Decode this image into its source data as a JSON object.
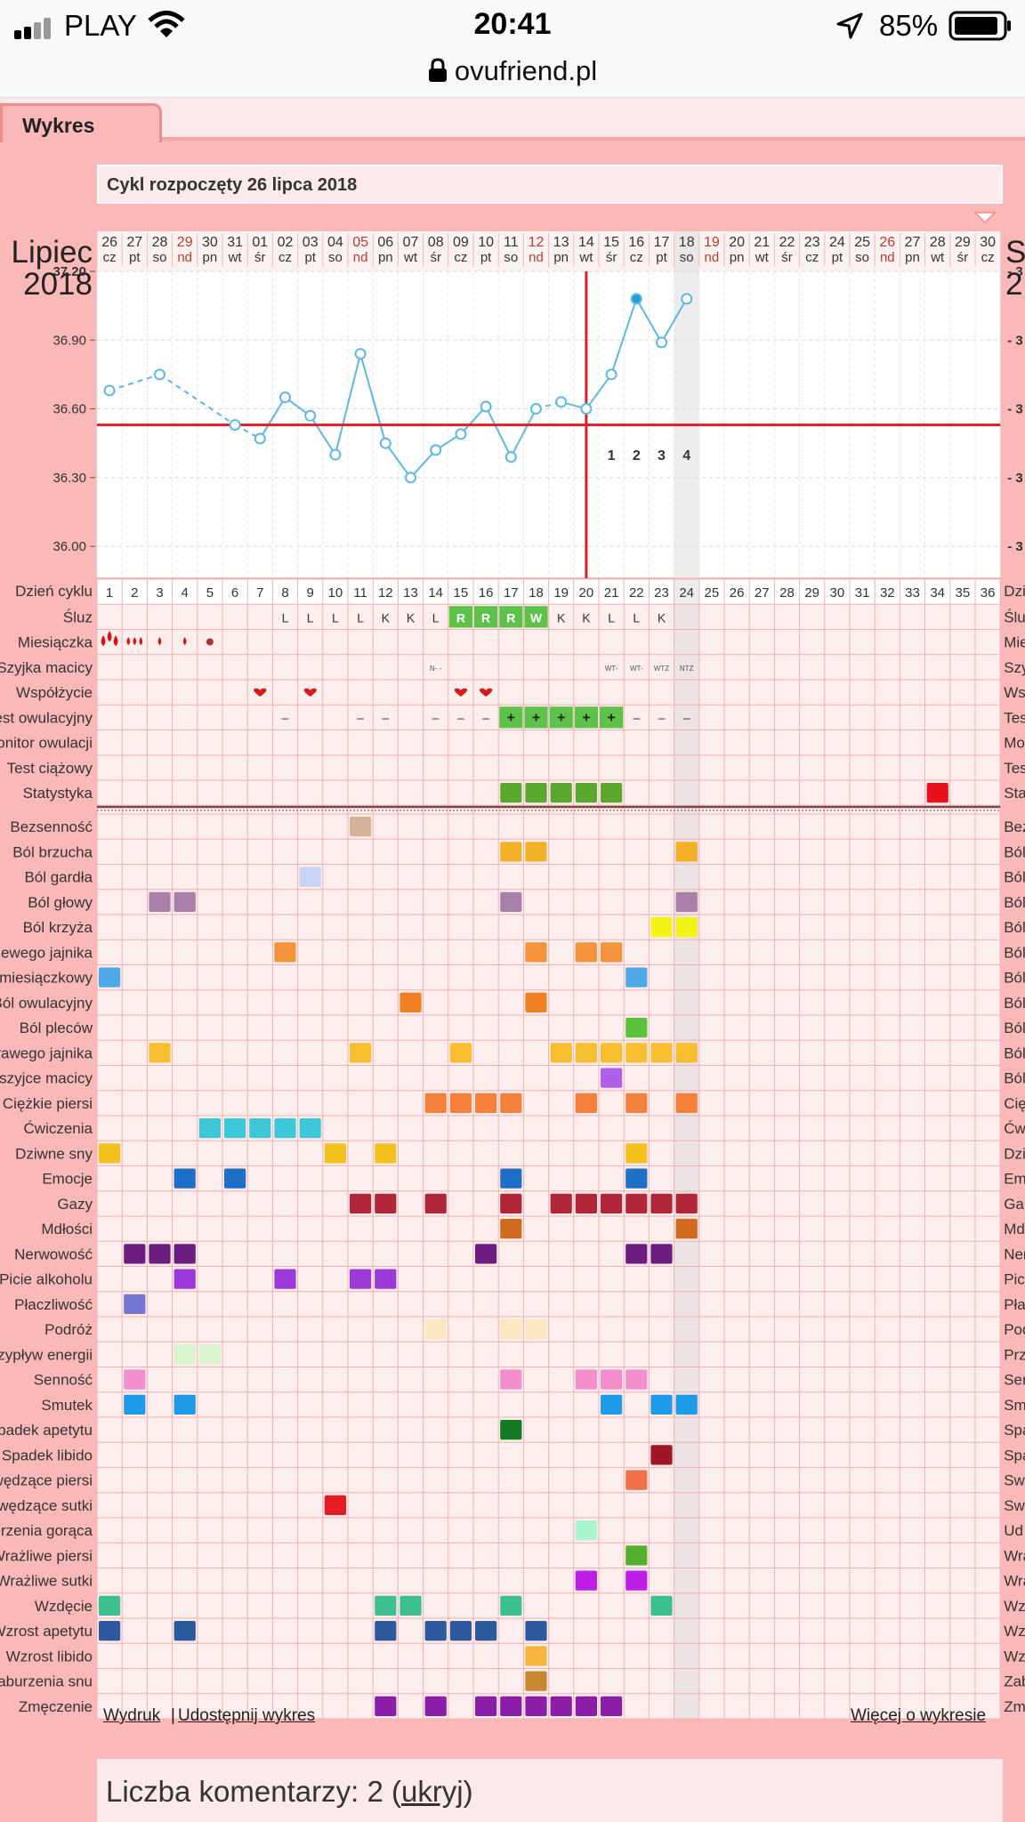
{
  "status_bar": {
    "carrier": "PLAY",
    "time": "20:41",
    "battery": "85%"
  },
  "browser": {
    "url": "ovufriend.pl"
  },
  "tab": {
    "label": "Wykres"
  },
  "cycle_header": "Cykl rozpoczęty 26 lipca 2018",
  "month_left": {
    "month": "Lipiec",
    "year": "2018"
  },
  "month_right": {
    "month": "S",
    "year": "2"
  },
  "dates": [
    "26",
    "27",
    "28",
    "29",
    "30",
    "31",
    "01",
    "02",
    "03",
    "04",
    "05",
    "06",
    "07",
    "08",
    "09",
    "10",
    "11",
    "12",
    "13",
    "14",
    "15",
    "16",
    "17",
    "18",
    "19",
    "20",
    "21",
    "22",
    "23",
    "24",
    "25",
    "26",
    "27",
    "28",
    "29",
    "30"
  ],
  "weekdays": [
    "cz",
    "pt",
    "so",
    "nd",
    "pn",
    "wt",
    "śr",
    "cz",
    "pt",
    "so",
    "nd",
    "pn",
    "wt",
    "śr",
    "cz",
    "pt",
    "so",
    "nd",
    "pn",
    "wt",
    "śr",
    "cz",
    "pt",
    "so",
    "nd",
    "pn",
    "wt",
    "śr",
    "cz",
    "pt",
    "so",
    "nd",
    "pn",
    "wt",
    "śr",
    "cz"
  ],
  "current_day_index": 23,
  "chart_data": {
    "type": "line",
    "title": "",
    "xlabel": "Dzień cyklu",
    "ylabel": "",
    "y_ticks": [
      "37.20",
      "36.90",
      "36.60",
      "36.30",
      "36.00"
    ],
    "ylim": [
      35.95,
      37.2
    ],
    "temperatures": [
      36.68,
      null,
      36.75,
      null,
      null,
      36.53,
      36.47,
      36.65,
      36.57,
      36.4,
      36.84,
      36.45,
      36.3,
      36.42,
      36.49,
      36.61,
      36.39,
      36.6,
      36.63,
      36.6,
      36.75,
      37.08,
      36.89,
      37.08
    ],
    "dashed_gaps": [
      [
        1,
        3
      ],
      [
        3,
        6
      ],
      [
        17,
        18
      ]
    ],
    "filled_point_index": 21,
    "coverline": 36.53,
    "ovulation_day": 20,
    "post_ovulation_labels": [
      "1",
      "2",
      "3",
      "4"
    ],
    "grid": true,
    "colors": {
      "line": "#5bb9e4",
      "coverline": "#dd1f26",
      "ovulation": "#dd1f26"
    }
  },
  "cycle_days": [
    "1",
    "2",
    "3",
    "4",
    "5",
    "6",
    "7",
    "8",
    "9",
    "10",
    "11",
    "12",
    "13",
    "14",
    "15",
    "16",
    "17",
    "18",
    "19",
    "20",
    "21",
    "22",
    "23",
    "24",
    "25",
    "26",
    "27",
    "28",
    "29",
    "30",
    "31",
    "32",
    "33",
    "34",
    "35",
    "36"
  ],
  "rows": {
    "day_row": "Dzień cyklu",
    "obs": [
      "Śluz",
      "Miesiączka",
      "Szyjka macicy",
      "Współżycie",
      "Test owulacyjny",
      "Monitor owulacji",
      "Test ciążowy",
      "Statystyka"
    ],
    "sym": [
      "Bezsenność",
      "Ból brzucha",
      "Ból gardła",
      "Ból głowy",
      "Ból krzyża",
      "Ból lewego jajnika",
      "Ból miesiączkowy",
      "Ból owulacyjny",
      "Ból pleców",
      "Ból prawego jajnika",
      "Ból w szyjce macicy",
      "Ciężkie piersi",
      "Ćwiczenia",
      "Dziwne sny",
      "Emocje",
      "Gazy",
      "Mdłości",
      "Nerwowość",
      "Picie alkoholu",
      "Płaczliwość",
      "Podróż",
      "Przypływ energii",
      "Senność",
      "Smutek",
      "Spadek apetytu",
      "Spadek libido",
      "Swędzące piersi",
      "Swędzące sutki",
      "Uderzenia gorąca",
      "Wrażliwe piersi",
      "Wrażliwe sutki",
      "Wzdęcie",
      "Wzrost apetytu",
      "Wzrost libido",
      "Zaburzenia snu",
      "Zmęczenie"
    ]
  },
  "right_labels": {
    "obs": [
      "Śluz",
      "Mie",
      "Szy",
      "Ws",
      "Tes",
      "Mo",
      "Tes",
      "Sta"
    ],
    "sym": [
      "Bez",
      "Ból",
      "Ból",
      "Ból",
      "Ból",
      "Ból",
      "Ból",
      "Ból",
      "Ból",
      "Ból",
      "Ból",
      "Cię",
      "Ćw",
      "Dzi",
      "Em",
      "Ga",
      "Md",
      "Ner",
      "Pic",
      "Pła",
      "Pod",
      "Prz",
      "Ser",
      "Sm",
      "Spa",
      "Spa",
      "Sw",
      "Sw",
      "Ud",
      "Wra",
      "Wra",
      "Wz",
      "Wz",
      "Wz",
      "Zab",
      "Zm"
    ],
    "day_row": "Dzi"
  },
  "sluz": {
    "8": "L",
    "9": "L",
    "10": "L",
    "11": "L",
    "12": "K",
    "13": "K",
    "14": "L",
    "15": "R",
    "16": "R",
    "17": "R",
    "18": "W",
    "19": "K",
    "20": "K",
    "21": "L",
    "22": "L",
    "23": "K"
  },
  "szyjka": {
    "14": "N- -",
    "21": "WT-",
    "22": "WT-",
    "23": "WTZ",
    "24": "NTZ"
  },
  "bleeding_days": [
    1,
    2,
    3,
    4
  ],
  "spotting_day": 5,
  "sex_days": [
    7,
    9,
    15,
    16
  ],
  "ovu_tests": {
    "8": "–",
    "11": "–",
    "12": "–",
    "14": "–",
    "15": "–",
    "16": "–",
    "17": "+",
    "18": "+",
    "19": "+",
    "20": "+",
    "21": "+",
    "22": "–",
    "23": "–",
    "24": "–"
  },
  "stat_days": [
    17,
    18,
    19,
    20,
    21,
    34
  ],
  "symptoms": {
    "Bezsenność": {
      "color": "#d2b39a",
      "days": [
        11
      ]
    },
    "Ból brzucha": {
      "color": "#f2b126",
      "days": [
        17,
        18,
        24
      ]
    },
    "Ból gardła": {
      "color": "#c8d4f5",
      "days": [
        9
      ]
    },
    "Ból głowy": {
      "color": "#a87fa8",
      "days": [
        3,
        4,
        17,
        24
      ]
    },
    "Ból krzyża": {
      "color": "#f3f316",
      "days": [
        23,
        24
      ]
    },
    "Ból lewego jajnika": {
      "color": "#f5933a",
      "days": [
        8,
        18,
        20,
        21
      ]
    },
    "Ból miesiączkowy": {
      "color": "#4fa9e8",
      "days": [
        1,
        22
      ]
    },
    "Ból owulacyjny": {
      "color": "#f08022",
      "days": [
        13,
        18
      ]
    },
    "Ból pleców": {
      "color": "#5bc33b",
      "days": [
        22
      ]
    },
    "Ból prawego jajnika": {
      "color": "#f7be30",
      "days": [
        3,
        11,
        15,
        19,
        20,
        21,
        22,
        23,
        24
      ]
    },
    "Ból w szyjce macicy": {
      "color": "#b060e8",
      "days": [
        21
      ]
    },
    "Ciężkie piersi": {
      "color": "#f4803a",
      "days": [
        14,
        15,
        16,
        17,
        20,
        22,
        24
      ]
    },
    "Ćwiczenia": {
      "color": "#3cc8d8",
      "days": [
        5,
        6,
        7,
        8,
        9
      ]
    },
    "Dziwne sny": {
      "color": "#f5c21d",
      "days": [
        1,
        10,
        12,
        22
      ]
    },
    "Emocje": {
      "color": "#1e6fc8",
      "days": [
        4,
        6,
        17,
        22
      ]
    },
    "Gazy": {
      "color": "#b02638",
      "days": [
        11,
        12,
        14,
        17,
        19,
        20,
        21,
        22,
        23,
        24
      ]
    },
    "Mdłości": {
      "color": "#d06a1e",
      "days": [
        17,
        24
      ]
    },
    "Nerwowość": {
      "color": "#6b1e80",
      "days": [
        2,
        3,
        4,
        16,
        22,
        23
      ]
    },
    "Picie alkoholu": {
      "color": "#9b3ad8",
      "days": [
        4,
        8,
        11,
        12
      ]
    },
    "Płaczliwość": {
      "color": "#7575d6",
      "days": [
        2
      ]
    },
    "Podróż": {
      "color": "#fbe8c0",
      "days": [
        14,
        17,
        18
      ]
    },
    "Przypływ energii": {
      "color": "#d8f5cf",
      "days": [
        4,
        5
      ]
    },
    "Senność": {
      "color": "#f58ecf",
      "days": [
        2,
        17,
        20,
        21,
        22
      ]
    },
    "Smutek": {
      "color": "#1e9be8",
      "days": [
        2,
        4,
        21,
        23,
        24
      ]
    },
    "Spadek apetytu": {
      "color": "#157a24",
      "days": [
        17
      ]
    },
    "Spadek libido": {
      "color": "#a01628",
      "days": [
        23
      ]
    },
    "Swędzące piersi": {
      "color": "#f07048",
      "days": [
        22
      ]
    },
    "Swędzące sutki": {
      "color": "#e81b24",
      "days": [
        10
      ]
    },
    "Uderzenia gorąca": {
      "color": "#a8f5cf",
      "days": [
        20
      ]
    },
    "Wrażliwe piersi": {
      "color": "#55b030",
      "days": [
        22
      ]
    },
    "Wrażliwe sutki": {
      "color": "#c01ee8",
      "days": [
        20,
        22
      ]
    },
    "Wzdęcie": {
      "color": "#3cc090",
      "days": [
        1,
        12,
        13,
        17,
        23
      ]
    },
    "Wzrost apetytu": {
      "color": "#2d5a9e",
      "days": [
        1,
        4,
        12,
        14,
        15,
        16,
        18
      ]
    },
    "Wzrost libido": {
      "color": "#f5b540",
      "days": [
        18
      ]
    },
    "Zaburzenia snu": {
      "color": "#c8862e",
      "days": [
        18
      ]
    },
    "Zmęczenie": {
      "color": "#8a1ea8",
      "days": [
        12,
        14,
        16,
        17,
        18,
        19,
        20,
        21
      ]
    }
  },
  "footer": {
    "print": "Wydruk",
    "share": "Udostępnij wykres",
    "more": "Więcej o wykresie",
    "separator": "|"
  },
  "comments": {
    "text": "Liczba komentarzy: 2 (",
    "toggle": "ukryj",
    "close": ")"
  }
}
